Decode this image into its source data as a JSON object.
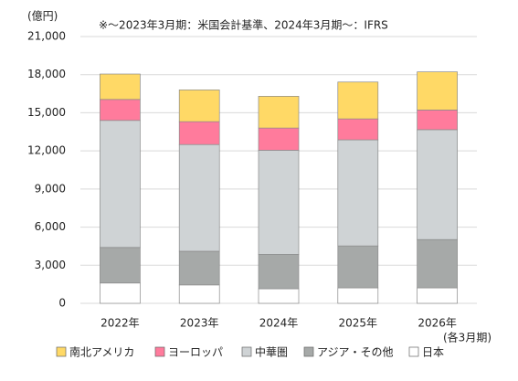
{
  "chart_data": {
    "type": "stacked_bar",
    "y_unit_label": "(億円)",
    "annotation": "※～2023年3月期：米国会計基準、2024年3月期～：IFRS",
    "x_note": "(各3月期)",
    "categories": [
      "2022年",
      "2023年",
      "2024年",
      "2025年",
      "2026年"
    ],
    "series": [
      {
        "name": "日本",
        "color": "#ffffff",
        "values": [
          1600,
          1450,
          1150,
          1220,
          1220
        ]
      },
      {
        "name": "アジア・その他",
        "color": "#a6a9a8",
        "values": [
          2800,
          2650,
          2700,
          3300,
          3800
        ]
      },
      {
        "name": "中華圏",
        "color": "#cfd3d5",
        "values": [
          10000,
          8400,
          8200,
          8350,
          8650
        ]
      },
      {
        "name": "ヨーロッパ",
        "color": "#ff7b9c",
        "values": [
          1650,
          1800,
          1750,
          1650,
          1550
        ]
      },
      {
        "name": "南北アメリカ",
        "color": "#ffd966",
        "values": [
          2000,
          2500,
          2500,
          2900,
          3000
        ]
      }
    ],
    "ylim": [
      0,
      21000
    ],
    "yticks": [
      0,
      {
        "value": 3000,
        "label": "3,000"
      },
      {
        "value": 6000,
        "label": "6,000"
      },
      {
        "value": 9000,
        "label": "9,000"
      },
      {
        "value": 12000,
        "label": "12,000"
      },
      {
        "value": 15000,
        "label": "15,000"
      },
      {
        "value": 18000,
        "label": "18,000"
      },
      {
        "value": 21000,
        "label": "21,000"
      }
    ],
    "grid": true
  }
}
